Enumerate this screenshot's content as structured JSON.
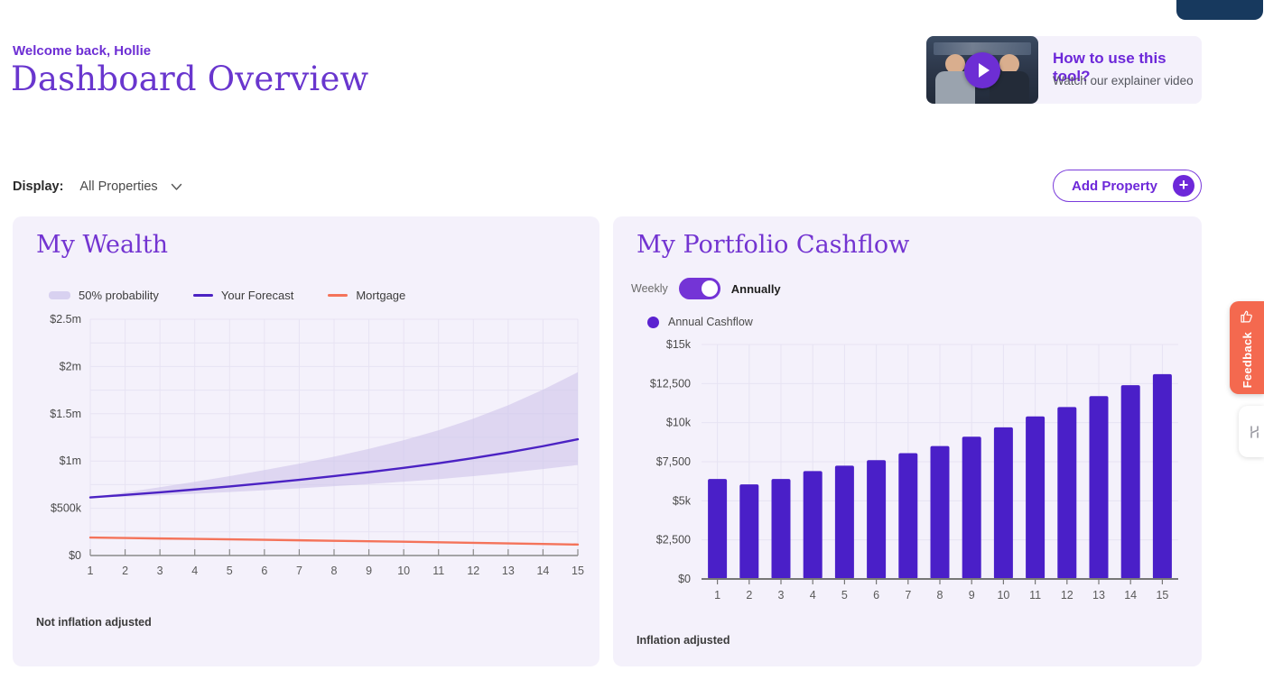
{
  "colors": {
    "accent_purple": "#6D2ED4",
    "deep_purple_line": "#4B22C3",
    "bar_purple": "#4A1FC8",
    "band_fill": "#CFC5EB",
    "band_swatch": "#D8D1F0",
    "coral": "#F4735A",
    "feedback_orange": "#F4694F",
    "navy": "#17395E",
    "card_bg": "#F4F1FB",
    "grid": "#E7E3F3"
  },
  "header": {
    "welcome": "Welcome back, Hollie",
    "title": "Dashboard Overview"
  },
  "help_card": {
    "title": "How to use this tool?",
    "subtitle": "Watch our explainer video"
  },
  "filter": {
    "label": "Display:",
    "value": "All Properties"
  },
  "add_property": {
    "label": "Add Property",
    "plus": "+"
  },
  "wealth_card": {
    "title": "My Wealth",
    "legend": [
      {
        "label": "50% probability",
        "type": "band",
        "color": "#D8D1F0"
      },
      {
        "label": "Your Forecast",
        "type": "line",
        "color": "#4B22C3"
      },
      {
        "label": "Mortgage",
        "type": "line",
        "color": "#F4735A"
      }
    ],
    "footnote": "Not inflation adjusted"
  },
  "cashflow_card": {
    "title": "My Portfolio Cashflow",
    "toggle": {
      "left": "Weekly",
      "right": "Annually",
      "active": "Annually"
    },
    "legend": [
      {
        "label": "Annual Cashflow",
        "color": "#5B22D0"
      }
    ],
    "footnote": "Inflation adjusted"
  },
  "feedback_tab": {
    "label": "Feedback"
  },
  "chart_data": [
    {
      "type": "area",
      "title": "My Wealth",
      "x": [
        1,
        2,
        3,
        4,
        5,
        6,
        7,
        8,
        9,
        10,
        11,
        12,
        13,
        14,
        15
      ],
      "series": [
        {
          "name": "Your Forecast",
          "color": "#4B22C3",
          "values": [
            615000,
            641000,
            669000,
            699000,
            731000,
            765000,
            801000,
            840000,
            882000,
            927000,
            976000,
            1031000,
            1091000,
            1157000,
            1230000
          ]
        },
        {
          "name": "Mortgage",
          "color": "#F4735A",
          "values": [
            190000,
            185000,
            180000,
            176000,
            171000,
            166000,
            161000,
            156000,
            151000,
            146000,
            140000,
            134000,
            128000,
            122000,
            116000
          ]
        }
      ],
      "band": {
        "name": "50% probability",
        "color": "#CFC5EB",
        "upper": [
          615000,
          668000,
          723000,
          780000,
          840000,
          904000,
          972000,
          1046000,
          1128000,
          1220000,
          1325000,
          1448000,
          1590000,
          1755000,
          1940000
        ],
        "lower": [
          615000,
          622000,
          637000,
          654000,
          672000,
          691000,
          711000,
          733000,
          756000,
          781000,
          808000,
          840000,
          876000,
          915000,
          958000
        ]
      },
      "ylim": [
        0,
        2500000
      ],
      "ytick_values": [
        0,
        500000,
        1000000,
        1500000,
        2000000,
        2500000
      ],
      "ytick_labels": [
        "$0",
        "$500k",
        "$1m",
        "$1.5m",
        "$2m",
        "$2.5m"
      ],
      "grid_step": 250000,
      "xticks": [
        "1",
        "2",
        "3",
        "4",
        "5",
        "6",
        "7",
        "8",
        "9",
        "10",
        "11",
        "12",
        "13",
        "14",
        "15"
      ],
      "footnote": "Not inflation adjusted",
      "legend_position": "top"
    },
    {
      "type": "bar",
      "title": "My Portfolio Cashflow",
      "categories": [
        "1",
        "2",
        "3",
        "4",
        "5",
        "6",
        "7",
        "8",
        "9",
        "10",
        "11",
        "12",
        "13",
        "14",
        "15"
      ],
      "values": [
        6400,
        6050,
        6400,
        6900,
        7250,
        7600,
        8050,
        8500,
        9100,
        9700,
        10400,
        11000,
        11700,
        12400,
        13100
      ],
      "bar_color": "#4A1FC8",
      "ylim": [
        0,
        15000
      ],
      "ytick_values": [
        0,
        2500,
        5000,
        7500,
        10000,
        12500,
        15000
      ],
      "ytick_labels": [
        "$0",
        "$2,500",
        "$5k",
        "$7,500",
        "$10k",
        "$12,500",
        "$15k"
      ],
      "footnote": "Inflation adjusted",
      "legend_position": "top"
    }
  ]
}
